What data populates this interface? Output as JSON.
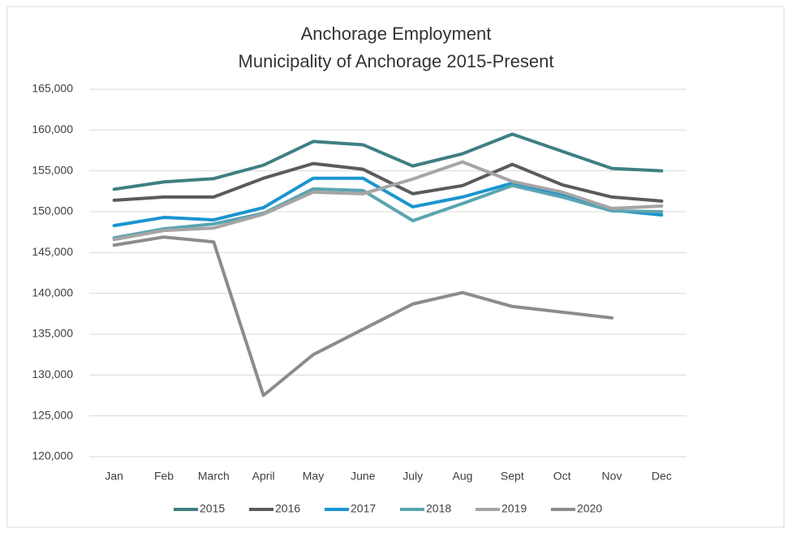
{
  "chart_data": {
    "type": "line",
    "title": "Anchorage Employment",
    "subtitle": "Municipality of Anchorage 2015-Present",
    "categories": [
      "Jan",
      "Feb",
      "March",
      "April",
      "May",
      "June",
      "July",
      "Aug",
      "Sept",
      "Oct",
      "Nov",
      "Dec"
    ],
    "series": [
      {
        "name": "2015",
        "color": "#3f7f82",
        "values": [
          152750,
          153650,
          154050,
          155700,
          158600,
          158200,
          155600,
          157100,
          159500,
          157400,
          155300,
          155000
        ]
      },
      {
        "name": "2016",
        "color": "#5b5b5b",
        "values": [
          151400,
          151800,
          151800,
          154100,
          155900,
          155200,
          152200,
          153200,
          155800,
          153300,
          151800,
          151300
        ]
      },
      {
        "name": "2017",
        "color": "#1a95d0",
        "values": [
          148300,
          149300,
          149000,
          150500,
          154100,
          154100,
          150600,
          151800,
          153500,
          152000,
          150200,
          149600
        ]
      },
      {
        "name": "2018",
        "color": "#5aa5b0",
        "values": [
          146800,
          147900,
          148500,
          149800,
          152800,
          152600,
          148900,
          151000,
          153200,
          151800,
          150100,
          150000
        ]
      },
      {
        "name": "2019",
        "color": "#a5a5a5",
        "values": [
          146600,
          147700,
          148000,
          149700,
          152400,
          152200,
          154000,
          156100,
          153700,
          152400,
          150400,
          150700
        ]
      },
      {
        "name": "2020",
        "color": "#8c8c8c",
        "values": [
          145900,
          146900,
          146300,
          127500,
          132500,
          135600,
          138700,
          140100,
          138400,
          137700,
          137000,
          null
        ]
      }
    ],
    "ylim": [
      120000,
      165000
    ],
    "yticks": [
      {
        "value": 120000,
        "label": "120,000"
      },
      {
        "value": 125000,
        "label": "125,000"
      },
      {
        "value": 130000,
        "label": "130,000"
      },
      {
        "value": 135000,
        "label": "135,000"
      },
      {
        "value": 140000,
        "label": "140,000"
      },
      {
        "value": 145000,
        "label": "145,000"
      },
      {
        "value": 150000,
        "label": "150,000"
      },
      {
        "value": 155000,
        "label": "155,000"
      },
      {
        "value": 160000,
        "label": "160,000"
      },
      {
        "value": 165000,
        "label": "165,000"
      }
    ],
    "grid": true,
    "legend": "bottom"
  }
}
